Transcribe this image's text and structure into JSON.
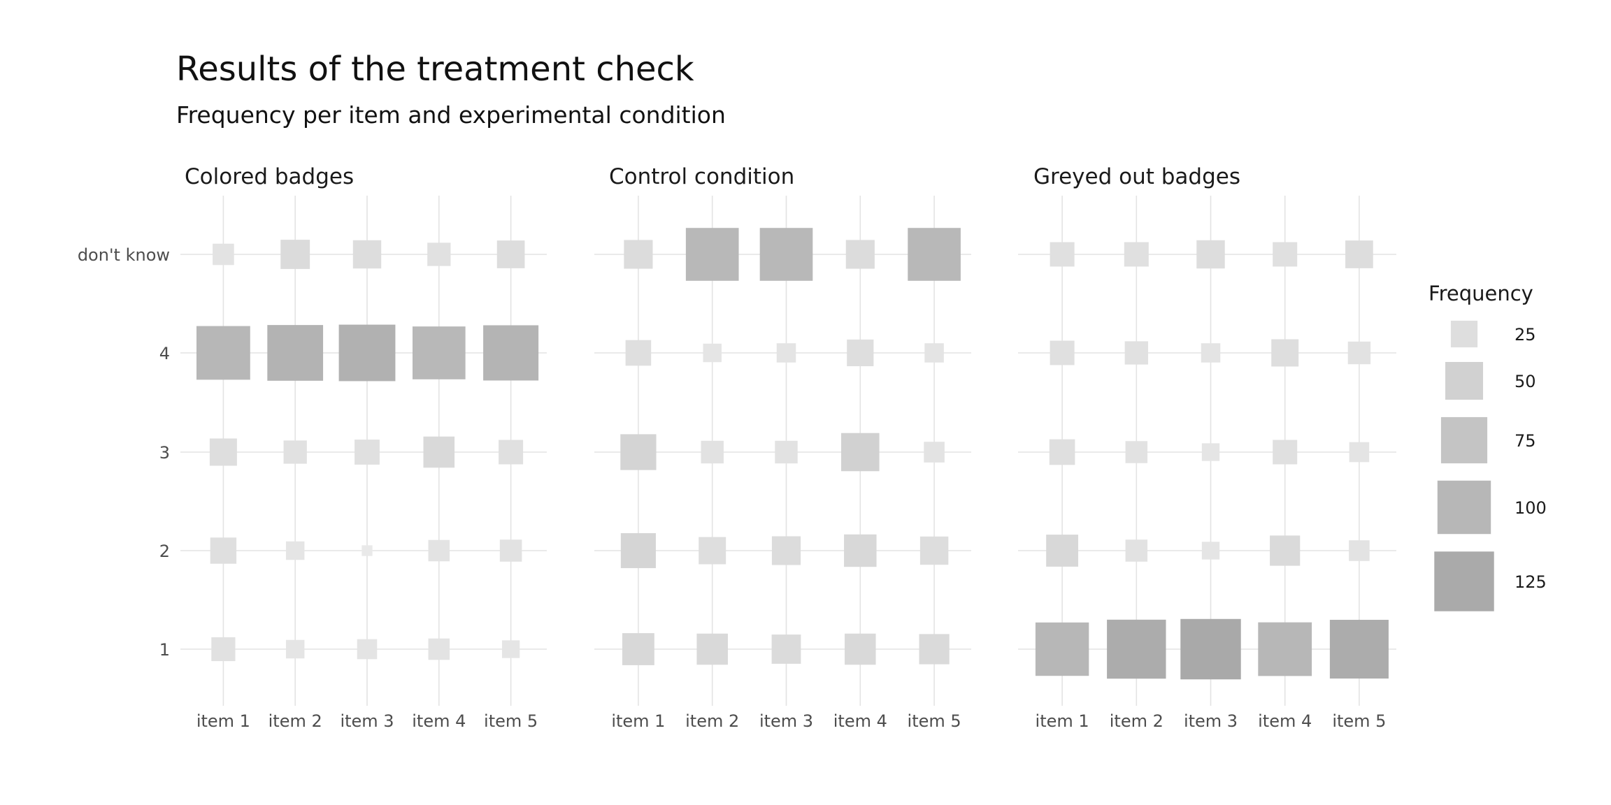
{
  "chart_data": {
    "type": "heatmap",
    "title": "Results of the treatment check",
    "subtitle": "Frequency per item and experimental condition",
    "categories": [
      "item 1",
      "item 2",
      "item 3",
      "item 4",
      "item 5"
    ],
    "y_categories": [
      "1",
      "2",
      "3",
      "4",
      "don't know"
    ],
    "legend": {
      "title": "Frequency",
      "breaks": [
        25,
        50,
        75,
        100,
        125
      ],
      "labels": [
        "25",
        "50",
        "75",
        "100",
        "125"
      ],
      "placement": "right",
      "color_low": "#ebebeb",
      "color_high": "#a0a0a0"
    },
    "size_range": [
      0,
      145
    ],
    "grid": true,
    "panels": [
      {
        "name": "Colored badges",
        "values": {
          "1": [
            20,
            12,
            14,
            16,
            11
          ],
          "2": [
            24,
            12,
            4,
            16,
            17
          ],
          "3": [
            26,
            19,
            22,
            34,
            21
          ],
          "4": [
            101,
            109,
            112,
            98,
            107
          ],
          "don't know": [
            16,
            30,
            28,
            19,
            27
          ]
        }
      },
      {
        "name": "Control condition",
        "values": {
          "1": [
            36,
            34,
            30,
            34,
            32
          ],
          "2": [
            43,
            26,
            29,
            37,
            28
          ],
          "3": [
            45,
            18,
            18,
            51,
            15
          ],
          "4": [
            23,
            12,
            13,
            25,
            13
          ],
          "don't know": [
            29,
            98,
            98,
            29,
            98
          ]
        }
      },
      {
        "name": "Greyed out badges",
        "values": {
          "1": [
            100,
            122,
            128,
            101,
            121
          ],
          "2": [
            36,
            17,
            11,
            32,
            15
          ],
          "3": [
            23,
            17,
            11,
            21,
            14
          ],
          "4": [
            21,
            19,
            13,
            26,
            18
          ],
          "don't know": [
            21,
            21,
            28,
            21,
            27
          ]
        }
      }
    ]
  }
}
